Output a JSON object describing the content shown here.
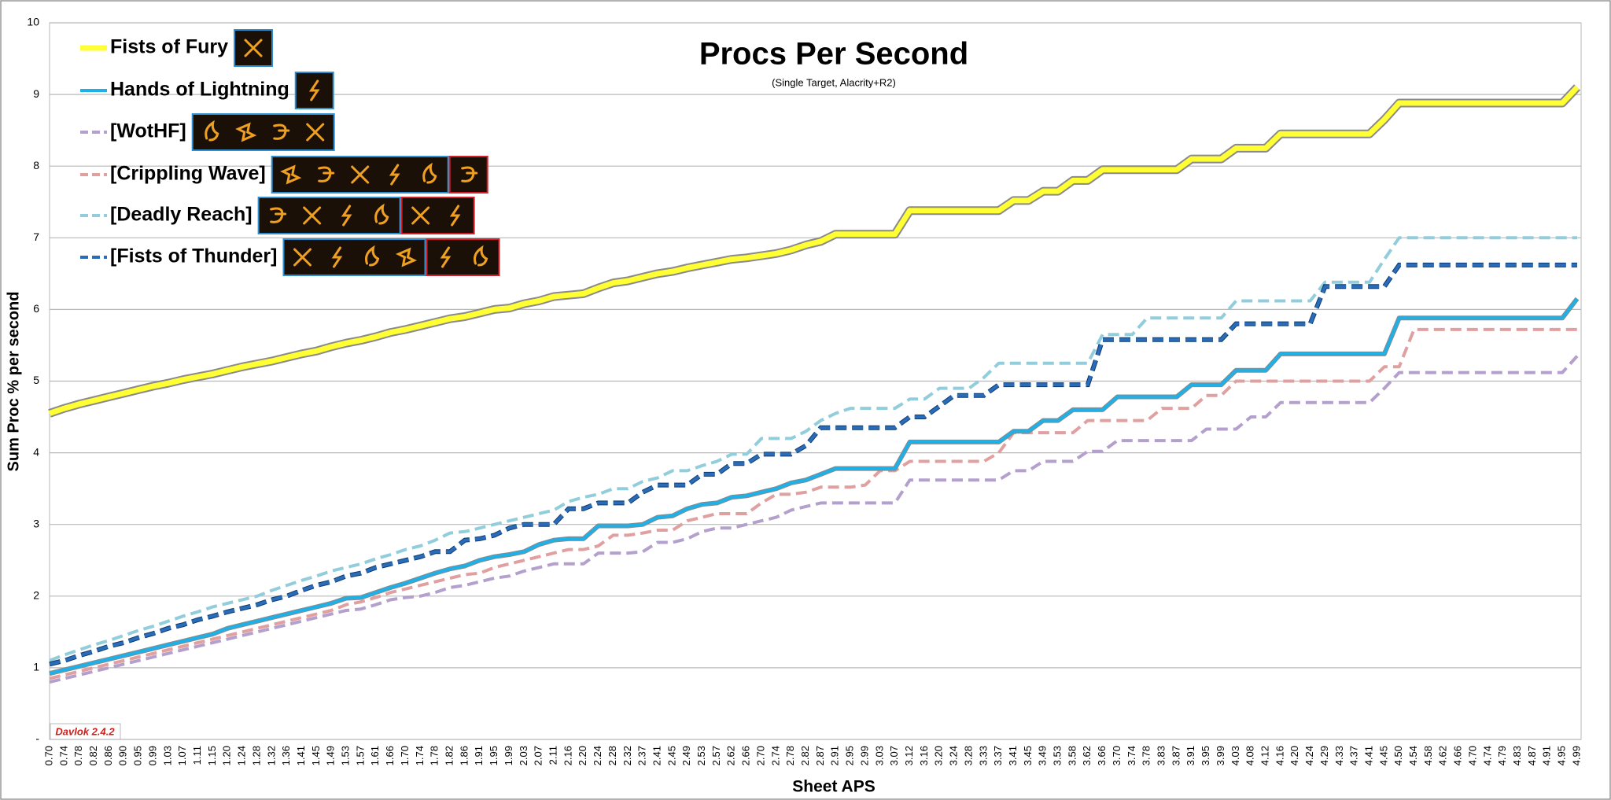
{
  "chart_data": {
    "type": "line",
    "title": "Procs Per Second",
    "subtitle": "(Single Target, Alacrity+R2)",
    "x_label": "Sheet APS",
    "y_label": "Sum Proc % per second",
    "annotation": "Davlok 2.4.2",
    "ylim": [
      0,
      10
    ],
    "yticks": [
      {
        "value": 0,
        "label": "-"
      },
      1,
      2,
      3,
      4,
      5,
      6,
      7,
      8,
      9,
      10
    ],
    "grid": true,
    "legend": "top-left",
    "categories": [
      "0.70",
      "0.74",
      "0.78",
      "0.82",
      "0.86",
      "0.90",
      "0.95",
      "0.99",
      "1.03",
      "1.07",
      "1.11",
      "1.15",
      "1.20",
      "1.24",
      "1.28",
      "1.32",
      "1.36",
      "1.41",
      "1.45",
      "1.49",
      "1.53",
      "1.57",
      "1.61",
      "1.66",
      "1.70",
      "1.74",
      "1.78",
      "1.82",
      "1.86",
      "1.91",
      "1.95",
      "1.99",
      "2.03",
      "2.07",
      "2.11",
      "2.16",
      "2.20",
      "2.24",
      "2.28",
      "2.32",
      "2.37",
      "2.41",
      "2.45",
      "2.49",
      "2.53",
      "2.57",
      "2.62",
      "2.66",
      "2.70",
      "2.74",
      "2.78",
      "2.82",
      "2.87",
      "2.91",
      "2.95",
      "2.99",
      "3.03",
      "3.07",
      "3.12",
      "3.16",
      "3.20",
      "3.24",
      "3.28",
      "3.33",
      "3.37",
      "3.41",
      "3.45",
      "3.49",
      "3.53",
      "3.58",
      "3.62",
      "3.66",
      "3.70",
      "3.74",
      "3.78",
      "3.83",
      "3.87",
      "3.91",
      "3.95",
      "3.99",
      "4.03",
      "4.08",
      "4.12",
      "4.16",
      "4.20",
      "4.24",
      "4.29",
      "4.33",
      "4.37",
      "4.41",
      "4.45",
      "4.50",
      "4.54",
      "4.58",
      "4.62",
      "4.66",
      "4.70",
      "4.74",
      "4.79",
      "4.83",
      "4.87",
      "4.91",
      "4.95",
      "4.99"
    ],
    "series": [
      {
        "name": "Fists of Fury",
        "color": "#ffff33",
        "dashed": false,
        "values": [
          4.55,
          4.62,
          4.68,
          4.73,
          4.78,
          4.83,
          4.88,
          4.93,
          4.97,
          5.02,
          5.06,
          5.1,
          5.15,
          5.2,
          5.24,
          5.28,
          5.33,
          5.38,
          5.42,
          5.48,
          5.53,
          5.57,
          5.62,
          5.68,
          5.72,
          5.77,
          5.82,
          5.87,
          5.9,
          5.95,
          6.0,
          6.02,
          6.08,
          6.12,
          6.18,
          6.2,
          6.22,
          6.3,
          6.37,
          6.4,
          6.45,
          6.5,
          6.53,
          6.58,
          6.62,
          6.66,
          6.7,
          6.72,
          6.75,
          6.78,
          6.83,
          6.9,
          6.95,
          7.05,
          7.05,
          7.05,
          7.05,
          7.05,
          7.38,
          7.38,
          7.38,
          7.38,
          7.38,
          7.38,
          7.38,
          7.52,
          7.52,
          7.65,
          7.65,
          7.8,
          7.8,
          7.95,
          7.95,
          7.95,
          7.95,
          7.95,
          7.95,
          8.1,
          8.1,
          8.1,
          8.25,
          8.25,
          8.25,
          8.45,
          8.45,
          8.45,
          8.45,
          8.45,
          8.45,
          8.45,
          8.65,
          8.88,
          8.88,
          8.88,
          8.88,
          8.88,
          8.88,
          8.88,
          8.88,
          8.88,
          8.88,
          8.88,
          8.88,
          9.1
        ]
      },
      {
        "name": "Hands of Lightning",
        "color": "#1fb0e8",
        "dashed": false,
        "values": [
          0.92,
          0.97,
          1.02,
          1.07,
          1.12,
          1.17,
          1.22,
          1.27,
          1.32,
          1.37,
          1.42,
          1.47,
          1.55,
          1.6,
          1.65,
          1.7,
          1.75,
          1.8,
          1.85,
          1.9,
          1.97,
          1.98,
          2.05,
          2.12,
          2.18,
          2.25,
          2.32,
          2.38,
          2.42,
          2.5,
          2.55,
          2.58,
          2.62,
          2.72,
          2.78,
          2.8,
          2.8,
          2.98,
          2.98,
          2.98,
          3.0,
          3.1,
          3.12,
          3.22,
          3.28,
          3.3,
          3.38,
          3.4,
          3.45,
          3.5,
          3.58,
          3.62,
          3.7,
          3.78,
          3.78,
          3.78,
          3.78,
          3.78,
          4.15,
          4.15,
          4.15,
          4.15,
          4.15,
          4.15,
          4.15,
          4.3,
          4.3,
          4.45,
          4.45,
          4.6,
          4.6,
          4.6,
          4.78,
          4.78,
          4.78,
          4.78,
          4.78,
          4.95,
          4.95,
          4.95,
          5.15,
          5.15,
          5.15,
          5.38,
          5.38,
          5.38,
          5.38,
          5.38,
          5.38,
          5.38,
          5.38,
          5.88,
          5.88,
          5.88,
          5.88,
          5.88,
          5.88,
          5.88,
          5.88,
          5.88,
          5.88,
          5.88,
          5.88,
          6.15
        ]
      },
      {
        "name": "[WotHF]",
        "color": "#b4a0cc",
        "dashed": true,
        "values": [
          0.8,
          0.85,
          0.9,
          0.95,
          1.0,
          1.05,
          1.1,
          1.15,
          1.2,
          1.25,
          1.3,
          1.35,
          1.4,
          1.45,
          1.5,
          1.55,
          1.6,
          1.65,
          1.7,
          1.75,
          1.8,
          1.82,
          1.88,
          1.95,
          1.98,
          2.0,
          2.05,
          2.12,
          2.15,
          2.2,
          2.25,
          2.28,
          2.35,
          2.4,
          2.45,
          2.45,
          2.45,
          2.6,
          2.6,
          2.6,
          2.62,
          2.75,
          2.75,
          2.8,
          2.9,
          2.95,
          2.95,
          3.0,
          3.05,
          3.1,
          3.2,
          3.25,
          3.3,
          3.3,
          3.3,
          3.3,
          3.3,
          3.3,
          3.62,
          3.62,
          3.62,
          3.62,
          3.62,
          3.62,
          3.62,
          3.75,
          3.75,
          3.88,
          3.88,
          3.88,
          4.02,
          4.02,
          4.17,
          4.17,
          4.17,
          4.17,
          4.17,
          4.17,
          4.33,
          4.33,
          4.33,
          4.5,
          4.5,
          4.7,
          4.7,
          4.7,
          4.7,
          4.7,
          4.7,
          4.7,
          4.9,
          5.12,
          5.12,
          5.12,
          5.12,
          5.12,
          5.12,
          5.12,
          5.12,
          5.12,
          5.12,
          5.12,
          5.12,
          5.35
        ]
      },
      {
        "name": "[Crippling Wave]",
        "color": "#e0a0a0",
        "dashed": true,
        "values": [
          0.85,
          0.9,
          0.95,
          1.0,
          1.05,
          1.1,
          1.15,
          1.2,
          1.25,
          1.3,
          1.35,
          1.4,
          1.45,
          1.5,
          1.55,
          1.6,
          1.65,
          1.7,
          1.75,
          1.8,
          1.88,
          1.92,
          1.98,
          2.05,
          2.1,
          2.15,
          2.2,
          2.25,
          2.3,
          2.32,
          2.4,
          2.45,
          2.5,
          2.55,
          2.6,
          2.65,
          2.65,
          2.7,
          2.85,
          2.85,
          2.88,
          2.92,
          2.92,
          3.05,
          3.1,
          3.15,
          3.15,
          3.15,
          3.3,
          3.42,
          3.42,
          3.45,
          3.52,
          3.52,
          3.52,
          3.55,
          3.75,
          3.75,
          3.88,
          3.88,
          3.88,
          3.88,
          3.88,
          3.88,
          4.0,
          4.28,
          4.28,
          4.28,
          4.28,
          4.28,
          4.45,
          4.45,
          4.45,
          4.45,
          4.45,
          4.62,
          4.62,
          4.62,
          4.8,
          4.8,
          5.0,
          5.0,
          5.0,
          5.0,
          5.0,
          5.0,
          5.0,
          5.0,
          5.0,
          5.0,
          5.2,
          5.2,
          5.72,
          5.72,
          5.72,
          5.72,
          5.72,
          5.72,
          5.72,
          5.72,
          5.72,
          5.72,
          5.72,
          5.72
        ]
      },
      {
        "name": "[Deadly Reach]",
        "color": "#92cddc",
        "dashed": true,
        "values": [
          1.1,
          1.18,
          1.25,
          1.32,
          1.38,
          1.45,
          1.52,
          1.58,
          1.65,
          1.72,
          1.78,
          1.85,
          1.9,
          1.95,
          2.0,
          2.08,
          2.15,
          2.22,
          2.28,
          2.35,
          2.4,
          2.45,
          2.52,
          2.58,
          2.65,
          2.7,
          2.78,
          2.88,
          2.9,
          2.95,
          3.0,
          3.05,
          3.1,
          3.15,
          3.2,
          3.32,
          3.38,
          3.42,
          3.5,
          3.5,
          3.6,
          3.65,
          3.75,
          3.75,
          3.82,
          3.88,
          3.98,
          3.98,
          4.2,
          4.2,
          4.2,
          4.3,
          4.45,
          4.55,
          4.62,
          4.62,
          4.62,
          4.62,
          4.75,
          4.75,
          4.9,
          4.9,
          4.9,
          5.05,
          5.25,
          5.25,
          5.25,
          5.25,
          5.25,
          5.25,
          5.25,
          5.65,
          5.65,
          5.65,
          5.88,
          5.88,
          5.88,
          5.88,
          5.88,
          5.88,
          6.12,
          6.12,
          6.12,
          6.12,
          6.12,
          6.12,
          6.38,
          6.38,
          6.38,
          6.38,
          6.7,
          7.0,
          7.0,
          7.0,
          7.0,
          7.0,
          7.0,
          7.0,
          7.0,
          7.0,
          7.0,
          7.0,
          7.0,
          7.0
        ]
      },
      {
        "name": "[Fists of Thunder]",
        "color": "#2a6cb8",
        "dashed": true,
        "values": [
          1.05,
          1.1,
          1.17,
          1.23,
          1.3,
          1.35,
          1.42,
          1.48,
          1.55,
          1.6,
          1.67,
          1.72,
          1.78,
          1.83,
          1.88,
          1.95,
          2.0,
          2.08,
          2.15,
          2.2,
          2.28,
          2.32,
          2.4,
          2.45,
          2.5,
          2.55,
          2.62,
          2.62,
          2.78,
          2.8,
          2.85,
          2.95,
          3.0,
          3.0,
          3.0,
          3.22,
          3.22,
          3.3,
          3.3,
          3.3,
          3.45,
          3.55,
          3.55,
          3.55,
          3.7,
          3.7,
          3.85,
          3.85,
          3.98,
          3.98,
          3.98,
          4.1,
          4.35,
          4.35,
          4.35,
          4.35,
          4.35,
          4.35,
          4.5,
          4.5,
          4.65,
          4.8,
          4.8,
          4.8,
          4.95,
          4.95,
          4.95,
          4.95,
          4.95,
          4.95,
          4.95,
          5.58,
          5.58,
          5.58,
          5.58,
          5.58,
          5.58,
          5.58,
          5.58,
          5.58,
          5.8,
          5.8,
          5.8,
          5.8,
          5.8,
          5.8,
          6.32,
          6.32,
          6.32,
          6.32,
          6.32,
          6.62,
          6.62,
          6.62,
          6.62,
          6.62,
          6.62,
          6.62,
          6.62,
          6.62,
          6.62,
          6.62,
          6.62,
          6.62
        ]
      }
    ]
  }
}
